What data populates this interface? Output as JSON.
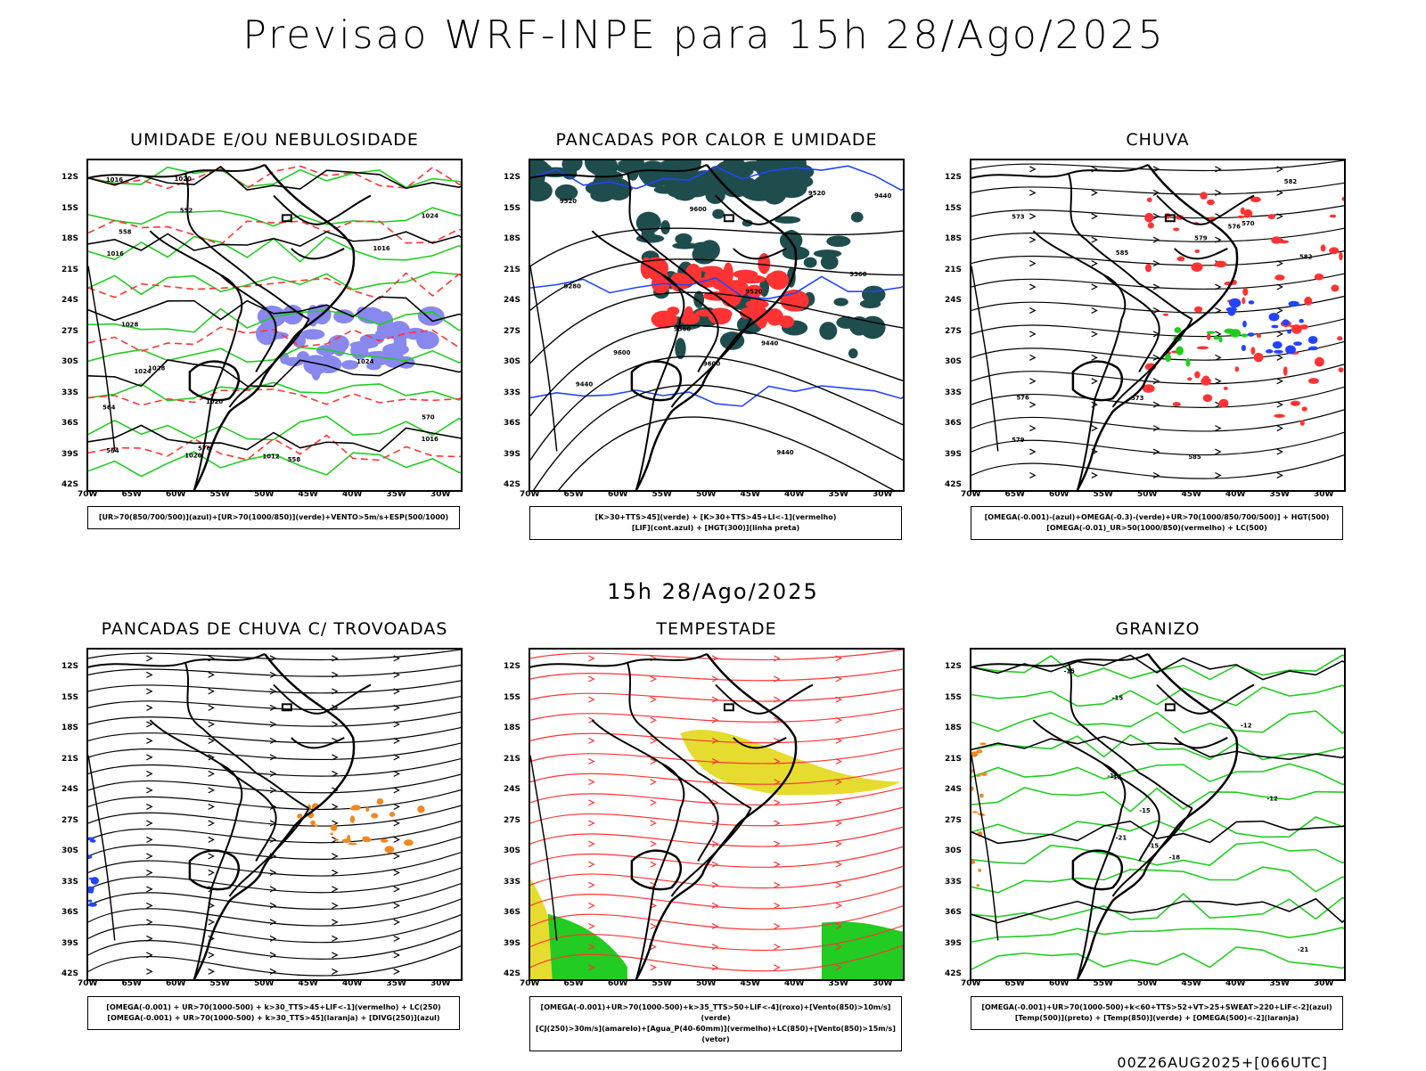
{
  "header": {
    "title": "Previsao WRF-INPE  para 15h 28/Ago/2025",
    "subtitle": "15h 28/Ago/2025",
    "footer": "00Z26AUG2025+[066UTC]"
  },
  "axes": {
    "lat_labels": [
      "12S",
      "15S",
      "18S",
      "21S",
      "24S",
      "27S",
      "30S",
      "33S",
      "36S",
      "39S",
      "42S"
    ],
    "lon_labels": [
      "70W",
      "65W",
      "60W",
      "55W",
      "50W",
      "45W",
      "40W",
      "35W",
      "30W"
    ]
  },
  "colors": {
    "green": "#22cc22",
    "red": "#ff3333",
    "blue": "#2244ff",
    "light_blue": "#8888ee",
    "dark_teal": "#1f4d4d",
    "yellow": "#e6dc30",
    "orange": "#ee8822",
    "black": "#000000"
  },
  "panels": [
    {
      "id": "umidade",
      "title": "UMIDADE E/OU NEBULOSIDADE",
      "legend": [
        "[UR>70(850/700/500)](azul)+[UR>70(1000/850)](verde)+VENTO>5m/s+ESP(500/1000)"
      ],
      "contour_labels": [
        "1016",
        "1012",
        "1016",
        "1020",
        "1016",
        "1016",
        "1020",
        "1024",
        "1020",
        "1024",
        "1028",
        "1028",
        "1024",
        "552",
        "558",
        "564",
        "570",
        "576",
        "564",
        "558"
      ]
    },
    {
      "id": "pancadas-calor",
      "title": "PANCADAS POR CALOR E UMIDADE",
      "legend": [
        "[K>30+TTS>45](verde) + [K>30+TTS>45+LI<-1](vermelho)",
        "[LIF](cont.azul) + [HGT(300)](linha preta)"
      ],
      "contour_labels": [
        "9600",
        "9600",
        "9600",
        "9520",
        "9520",
        "9520",
        "9440",
        "9440",
        "9440",
        "9440",
        "9360",
        "9360",
        "9280"
      ]
    },
    {
      "id": "chuva",
      "title": "CHUVA",
      "legend": [
        "[OMEGA(-0.001)-(azul)+OMEGA(-0.3)-(verde)+UR>70(1000/850/700/500)] + HGT(500)",
        "[OMEGA(-0.01)_UR>50(1000/850)(vermelho) + LC(500)"
      ],
      "contour_labels": [
        "585",
        "585",
        "582",
        "582",
        "579",
        "579",
        "576",
        "576",
        "573",
        "573",
        "570"
      ]
    },
    {
      "id": "trovoadas",
      "title": "PANCADAS DE CHUVA C/ TROVOADAS",
      "legend": [
        "[OMEGA(-0.001) + UR>70(1000-500) + k>30_TTS>45+LIF<-1](vermelho) + LC(250)",
        "[OMEGA(-0.001) + UR>70(1000-500) + k>30_TTS>45](laranja) + [DIVG(250)](azul)"
      ],
      "contour_labels": []
    },
    {
      "id": "tempestade",
      "title": "TEMPESTADE",
      "legend": [
        "[OMEGA(-0.001)+UR>70(1000-500)+k>35_TTS>50+LIF<-4](roxo)+[Vento(850)>10m/s](verde)",
        "[CJ(250)>30m/s](amarelo)+[Agua_P(40-60mm)](vermelho)+LC(850)+[Vento(850)>15m/s](vetor)"
      ],
      "contour_labels": []
    },
    {
      "id": "granizo",
      "title": "GRANIZO",
      "legend": [
        "[OMEGA(-0.001)+UR>70(1000-500)+k<60+TTS>52+VT>25+SWEAT>220+LIF<-2](azul)",
        "[Temp(500)](preto) + [Temp(850)](verde) + [OMEGA(500)<-2](laranja)"
      ],
      "contour_labels": [
        "-12",
        "-15",
        "-15",
        "-15",
        "-18",
        "-18",
        "-18",
        "-21",
        "-21",
        "-15",
        "-12"
      ]
    }
  ]
}
